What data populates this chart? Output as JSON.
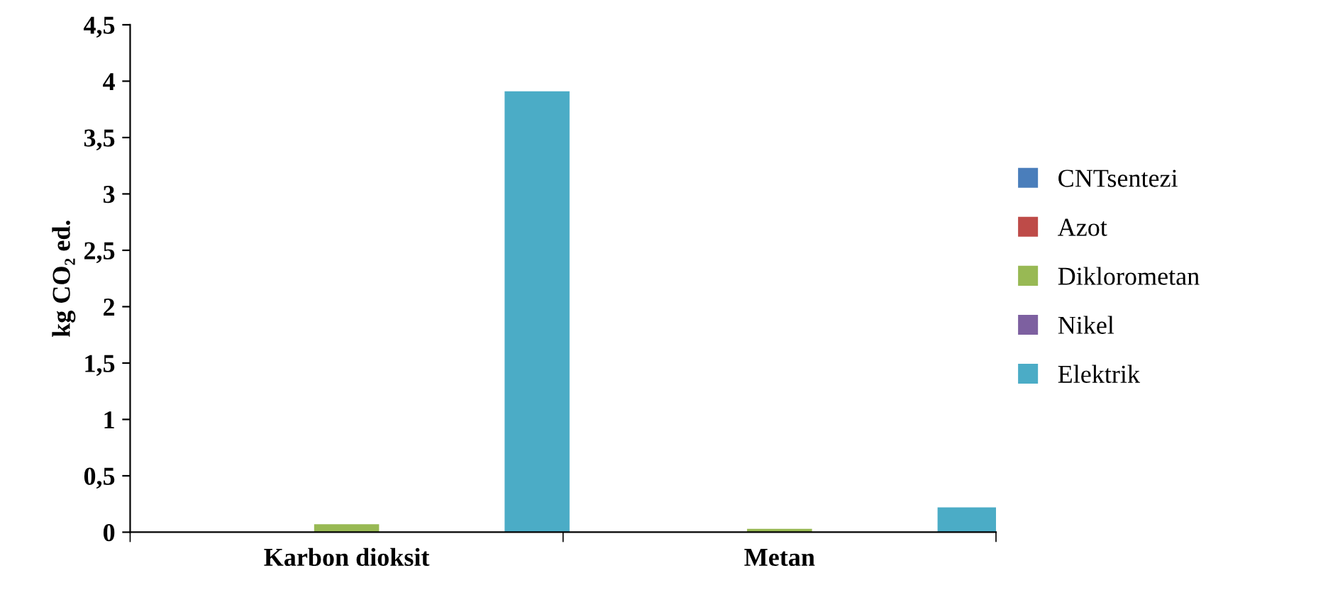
{
  "chart_data": {
    "type": "bar",
    "ylabel": "kg CO₂ ed.",
    "categories": [
      "Karbon dioksit",
      "Metan"
    ],
    "series": [
      {
        "name": "CNTsentezi",
        "color": "#4a7ebb",
        "values": [
          0,
          0
        ]
      },
      {
        "name": "Azot",
        "color": "#be4b48",
        "values": [
          0,
          0
        ]
      },
      {
        "name": "Diklorometan",
        "color": "#98b954",
        "values": [
          0.07,
          0.03
        ]
      },
      {
        "name": "Nikel",
        "color": "#7d60a0",
        "values": [
          0,
          0
        ]
      },
      {
        "name": "Elektrik",
        "color": "#4bacc6",
        "values": [
          3.91,
          0.22
        ]
      }
    ],
    "ylim": [
      0,
      4.5
    ],
    "yticks": [
      0,
      {
        "value": 0.5,
        "label": "0,5"
      },
      1,
      {
        "value": 1.5,
        "label": "1,5"
      },
      2,
      {
        "value": 2.5,
        "label": "2,5"
      },
      3,
      {
        "value": 3.5,
        "label": "3,5"
      },
      4,
      {
        "value": 4.5,
        "label": "4,5"
      }
    ],
    "grid": false,
    "legend": "right"
  }
}
